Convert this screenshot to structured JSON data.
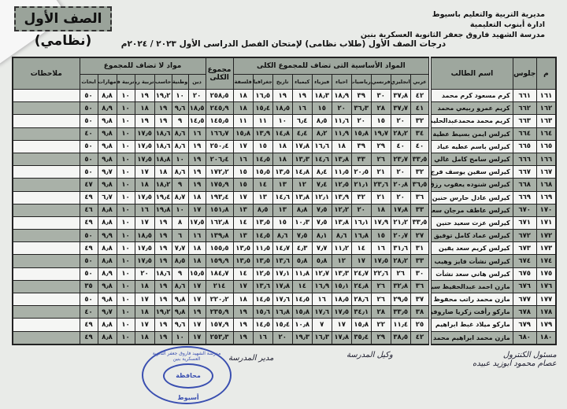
{
  "header": {
    "badge": "الصف الأول (نظامي)",
    "school_lines": [
      "مديرية التربية والتعليم باسيوط",
      "ادارة أبنوب التعليمية",
      "مدرسة الشهيد فاروق جعفر الثانوية العسكرية بنين"
    ],
    "subtitle": "درجات الصف الأول (طلاب نظامى) لإمتحان الفصل الدراسى الأول ٢٠٢٣ / ٢٠٢٤م"
  },
  "table": {
    "group_added": "المواد الأساسية التى تضاف للمجموع الكلى",
    "group_not_added": "مواد لا تضاف للمجموع",
    "col_m": "م",
    "col_seat": "جلوس",
    "col_name": "اسم الطالب",
    "col_total": "مجموع الكلى",
    "col_notes": "ملاحظات",
    "added_subjects": [
      "عربي",
      "انجليزي",
      "فرنسي",
      "رياضيات",
      "احياء",
      "فيزياء",
      "كيمياء",
      "تاريخ",
      "جغرافيا",
      "فلسفة"
    ],
    "other_subjects": [
      "دين",
      "وطنية",
      "حاسب",
      "تربية رياضية",
      "تربية فنية",
      "مهارات",
      "ابحاث"
    ],
    "rows": [
      [
        "١٦١",
        "٦٦١",
        "كرم مسعود كرم محمد",
        "٤٢",
        "٣٧٫٨",
        "٣٠",
        "٣٩",
        "١٨٫٩",
        "١٨٫٣",
        "١٩",
        "١٩",
        "١٦٫٥",
        "١٨",
        "٢٥٨٫٥",
        "٢٠",
        "١٠",
        "١٩٫٢",
        "١٩",
        "١٠",
        "٨٫٨",
        "٥٠"
      ],
      [
        "١٦٢",
        "٦٦٢",
        "كريم عمرو ربيعي محمد",
        "٤١",
        "٣٧٫٧",
        "٢٨",
        "٣٦٫٣",
        "٢٠",
        "١٥",
        "١٦",
        "١٨٫٥",
        "١٥٫٤",
        "١٨",
        "٢٤٥٫٩",
        "١٨٫٥",
        "٩٫٦",
        "١٩",
        "١٨",
        "١٠",
        "٨٫٩",
        "٥٠"
      ],
      [
        "١٦٣",
        "٦٦٣",
        "كريم محمد محمدعبدالحليم دردير",
        "٣٢",
        "٢٠",
        "١٥",
        "٢٠",
        "١١٫٦",
        "٨٫٥",
        "٦٫٤",
        "١٠",
        "١١",
        "١١",
        "١٤٥٫٥",
        "١٤٫٥",
        "٩",
        "١٩",
        "١٩",
        "١٠",
        "٩٫٨",
        "٥٠"
      ],
      [
        "١٦٤",
        "٦٦٤",
        "كيرلس ايمن بسيط عطية",
        "٣٤",
        "٢٨٫٢",
        "١٩٫٧",
        "١٥٫٨",
        "١١٫٩",
        "٨٫٢",
        "٤٫٤",
        "١٤٫٨",
        "١٣٫٩",
        "١٥٫٨",
        "١٦٦٫٧",
        "١٦",
        "٨٫٦",
        "١٨٫٦",
        "١٧٫٥",
        "١٠",
        "٩٫٨",
        "٤٠"
      ],
      [
        "١٦٥",
        "٦٦٥",
        "كيرلس باسم عطيه عياد",
        "٤٠",
        "٤٠",
        "٢٩",
        "٣٩",
        "١٨",
        "١٦٫٦",
        "١٧٫٨",
        "١٨",
        "١٥",
        "١٧",
        "٢٥٠٫٤",
        "١٩",
        "٨٫٦",
        "١٨٫٦",
        "١٧٫٥",
        "١٠",
        "٩٫٨",
        "٥٠"
      ],
      [
        "١٦٦",
        "٦٦٦",
        "كيرلس سامح كامل غالي",
        "٣٣٫٥",
        "٢٣٫٧",
        "٢٦",
        "٣٣",
        "١٣٫٨",
        "١٤٫٦",
        "١٣٫٣",
        "١٨",
        "١٤٫٥",
        "١٦",
        "٢٠٦٫٤",
        "١٩",
        "١٠",
        "١٨٫٨",
        "١٧٫٥",
        "١٠",
        "٩٫٨",
        "٥٠"
      ],
      [
        "١٦٧",
        "٦٦٧",
        "كيرلس سفين يوسف فرج",
        "٣٢",
        "٢٠",
        "٢١",
        "٢٠٫٥",
        "١١٫٥",
        "٨٫٤",
        "١٤٫٨",
        "١٣٫٥",
        "١٥٫٥",
        "١٥",
        "١٧٢٫٢",
        "١٩",
        "٨٫٦",
        "١٨",
        "١٧",
        "١٠",
        "٩٫٧",
        "٥٠"
      ],
      [
        "١٦٨",
        "٦٦٨",
        "كيرلس شنوده يعقوب رزق",
        "٣٦٫٥",
        "٢٠٫٨",
        "٢٣٫٦",
        "٢١٫١",
        "١٢٫٥",
        "٧٫٤",
        "١٢",
        "١٣",
        "١٤",
        "١٥",
        "١٧٥٫٩",
        "١٩",
        "٩",
        "١٨٫٢",
        "١٨",
        "١٠",
        "٩٫٨",
        "٤٧"
      ],
      [
        "١٦٩",
        "٦٦٩",
        "كيرلس عادل حارس حنين",
        "٣٦",
        "٢٠",
        "٢١",
        "٣٢",
        "١٣٫٩",
        "١٢٫١",
        "١٣٫٨",
        "١٤٫٦",
        "١٣",
        "١٧",
        "١٩٣٫٤",
        "١٨",
        "٨٫٧",
        "١٩٫٤",
        "١٧٫٥",
        "١٠",
        "٦٫٧",
        "٤٩"
      ],
      [
        "١٧٠",
        "٦٧٠",
        "كيرلس عاطف مرجان سعد",
        "٣٣",
        "١٧٫٨",
        "١٨",
        "٢٠",
        "١٢٫٢",
        "٧٫٥",
        "٨٫٨",
        "١٣",
        "٨٫٥",
        "١٣",
        "١٥١٫٨",
        "١٧",
        "١٠",
        "١٩٫٨",
        "١٦",
        "١٠",
        "٨٫٨",
        "٤٦"
      ],
      [
        "١٧١",
        "٦٧١",
        "كيرلس عزت سعيد حنين",
        "٣٣٫٥",
        "٢١٫٢",
        "١٧٫٩",
        "١٦٫١",
        "١٣٫٨",
        "٧٫٥",
        "١٠٫٣",
        "١٥",
        "١٣٫٥",
        "١٤",
        "١٦٢٫٨",
        "١٧٫٥",
        "٨",
        "١٩",
        "١٧",
        "١٠",
        "٨٫٨",
        "٤٩"
      ],
      [
        "١٧٢",
        "٦٧٢",
        "كيرلس عماد كامل توفيق",
        "٢٧",
        "٢٠٫٧",
        "١٥",
        "١٦٫٨",
        "٨٫٦",
        "٨٫١",
        "٧٫٥",
        "٨٫٦",
        "١٤٫٥",
        "١٣",
        "١٣٩٫٨",
        "١٦",
        "٦",
        "١٩",
        "١٨٫٥",
        "١٠",
        "٩٫٩",
        "٥٠"
      ],
      [
        "١٧٣",
        "٦٧٣",
        "كيرلس كريم سعد يقين",
        "٣١",
        "٣١٫٦",
        "١٦",
        "١٤",
        "١١٫٢",
        "٧٫٧",
        "٤٫٣",
        "١٤٫٧",
        "١١٫٥",
        "١٣٫٥",
        "١٥٥٫٥",
        "١٨",
        "٧٫٧",
        "١٩",
        "١٧٫٥",
        "١٠",
        "٨٫٨",
        "٤٩"
      ],
      [
        "١٧٤",
        "٦٧٤",
        "كيرلس نشأت فايز وهيب",
        "٣٣",
        "٢٨٫٢",
        "١٧٫٥",
        "١٧",
        "١٢",
        "٥٫٨",
        "٥٫٨",
        "١٣٫٦",
        "١٣٫٥",
        "١٣٫٥",
        "١٥٩٫٩",
        "١٨",
        "٨٫٥",
        "١٩",
        "١٧٫٥",
        "١٠",
        "٨٫٨",
        "٥٠"
      ],
      [
        "١٧٥",
        "٦٧٥",
        "كيرلس هاني سعد نشأت",
        "٣٠",
        "٢٦",
        "٢٢٫٦",
        "٢٤٫٧",
        "١٣٫٣",
        "١٢٫٧",
        "١١٫٨",
        "١٧٫١",
        "١٢٫٥",
        "١٤",
        "١٨٤٫٧",
        "١٥٫٥",
        "٩",
        "١٨٫٦",
        "٢٠",
        "١٠",
        "٨٫٩",
        "٥٠"
      ],
      [
        "١٧٦",
        "٦٧٦",
        "مازن احمد عبدالحفيظ سيد",
        "٣٦",
        "٣٢٫٨",
        "٢٦",
        "٢٤٫٨",
        "١٥٫١",
        "١٦٫٩",
        "١٤",
        "١٧٫٨",
        "١٣٫٦",
        "١٧",
        "٢١٤",
        "١٧",
        "٨٫٦",
        "١٩",
        "١٨",
        "١٠",
        "٩٫٨",
        "٣٥"
      ],
      [
        "١٧٧",
        "٦٧٧",
        "مازن محمد راتب محفوظ",
        "٣٧",
        "٢٩٫٥",
        "٢٦",
        "٢٨٫٦",
        "١٨٫٥",
        "١٦",
        "١٤٫٥",
        "١٧٫٦",
        "١٤٫٥",
        "١٨",
        "٢٢٠٫٢",
        "١٧",
        "٩٫٨",
        "١٩",
        "١٧",
        "١٠",
        "٩٫٨",
        "٥٠"
      ],
      [
        "١٧٨",
        "٦٧٨",
        "ماركو رأفت زكريا صاروفيم",
        "٣٨",
        "٣٣٫٥",
        "٢٨",
        "٣٤٫١",
        "١٧٫٥",
        "١٧٫٦",
        "١٥٫٨",
        "١٦٫٨",
        "١٥٫٦",
        "١٩",
        "٢٣٥٫٩",
        "١٩",
        "٩٫٨",
        "١٩٫٢",
        "١٨",
        "١٠",
        "٩٫٧",
        "٤٠"
      ],
      [
        "١٧٩",
        "٦٧٩",
        "ماركو ميلاد غبط ابراهيم",
        "٢٥",
        "١١٫٤",
        "٢٢",
        "١٥٫٨",
        "١٧",
        "٧",
        "١٠٫٨",
        "١٥٫٤",
        "١٤٫٥",
        "١٩",
        "١٥٧٫٩",
        "١٧",
        "٩٫٦",
        "١٩",
        "١٧",
        "١٠",
        "٨٫٨",
        "٤٩"
      ],
      [
        "١٨٠",
        "٦٨٠",
        "مازن محمد ابراهيم محمد",
        "٤٢",
        "٣٨٫٥",
        "٢٩",
        "٣٥٫٤",
        "١٧٫٨",
        "١٦٫٣",
        "١٩٫٣",
        "٢٠",
        "١٦",
        "١٩",
        "٢٥٣٫٣",
        "١٧",
        "١٠",
        "١٩",
        "١٨",
        "١٠",
        "٨٫٨",
        "٤٩"
      ]
    ]
  },
  "signatures": {
    "control": "مسئول الكنترول",
    "control_name": "عصام محمود ابوزيد عبيده",
    "deputy": "وكيل المدرسة",
    "principal": "مدير المدرسة",
    "stamp_outer": "مدرسة الشهيد فاروق جعفر الثانوية العسكرية بنين",
    "stamp_inner": "محافظة أسيوط"
  }
}
